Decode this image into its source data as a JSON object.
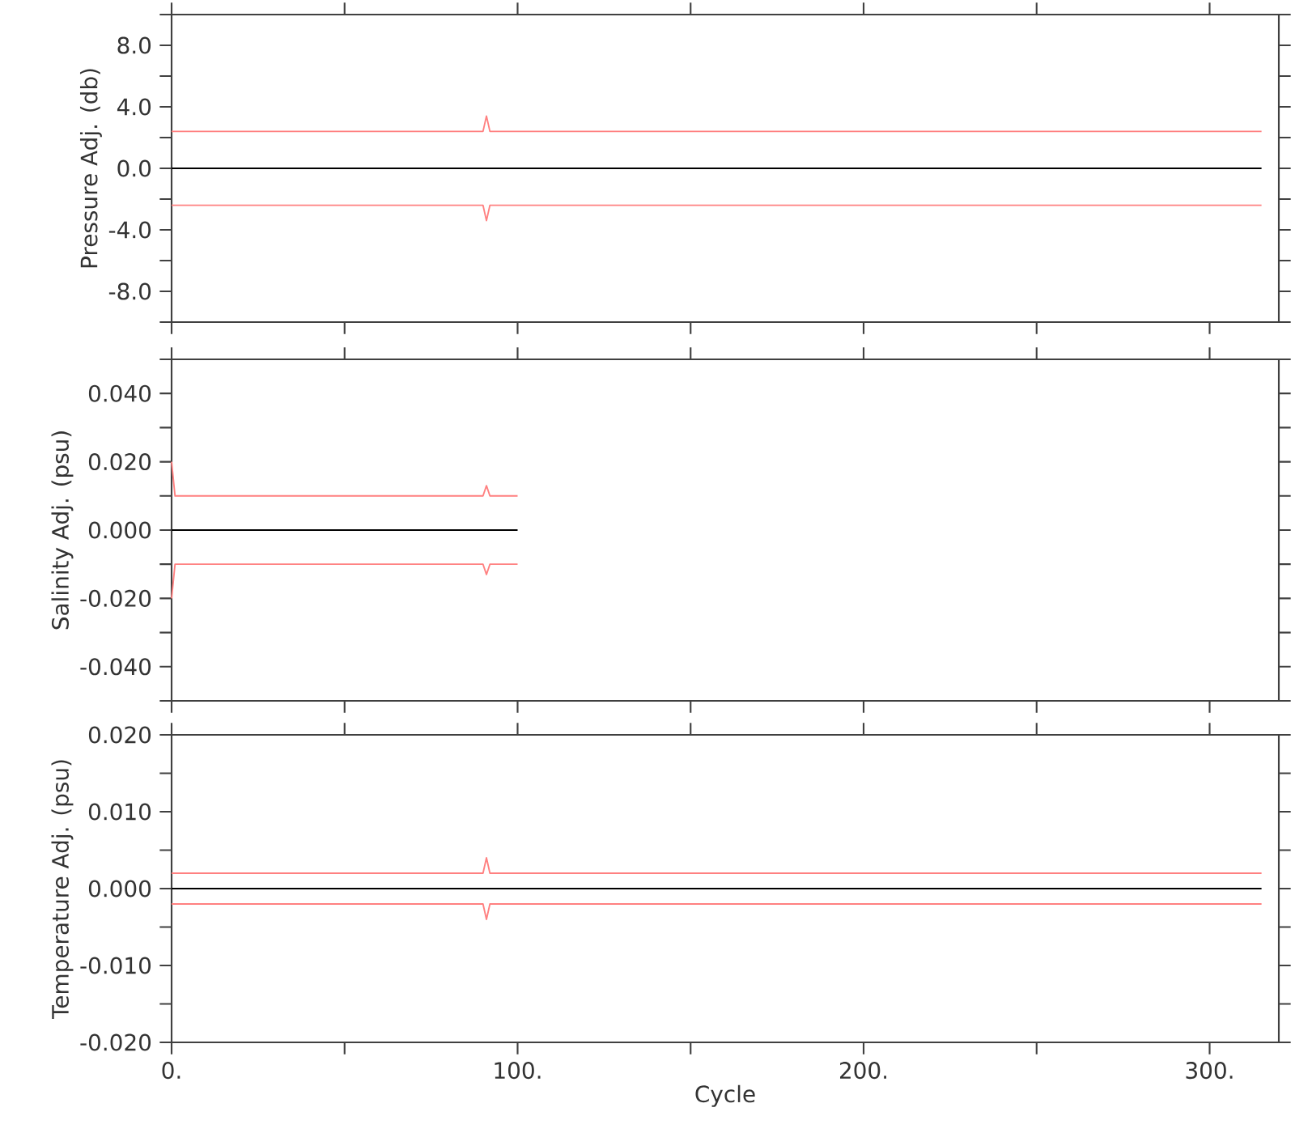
{
  "chart_data": [
    {
      "type": "line",
      "ylabel": "Pressure Adj. (db)",
      "xlim": [
        0,
        320
      ],
      "xticks": [
        {
          "value": 0,
          "label": null
        },
        {
          "value": 50,
          "label": null
        },
        {
          "value": 100,
          "label": null
        },
        {
          "value": 150,
          "label": null
        },
        {
          "value": 200,
          "label": null
        },
        {
          "value": 250,
          "label": null
        },
        {
          "value": 300,
          "label": null
        }
      ],
      "ylim": [
        -10,
        10
      ],
      "yticks": [
        {
          "value": -10,
          "label": null
        },
        {
          "value": -8,
          "label": "-8.0"
        },
        {
          "value": -6,
          "label": null
        },
        {
          "value": -4,
          "label": "-4.0"
        },
        {
          "value": -2,
          "label": null
        },
        {
          "value": 0,
          "label": "0.0"
        },
        {
          "value": 2,
          "label": null
        },
        {
          "value": 4,
          "label": "4.0"
        },
        {
          "value": 6,
          "label": null
        },
        {
          "value": 8,
          "label": "8.0"
        },
        {
          "value": 10,
          "label": null
        }
      ],
      "tick_labels": "y",
      "line_style": "solid",
      "marker": "none",
      "series": [
        {
          "color": "#ff8080",
          "x": [
            0,
            90,
            91,
            92,
            315
          ],
          "values": [
            2.4,
            2.4,
            3.4,
            2.4,
            2.4
          ]
        },
        {
          "color": "#ff8080",
          "x": [
            0,
            90,
            91,
            92,
            315
          ],
          "values": [
            -2.4,
            -2.4,
            -3.4,
            -2.4,
            -2.4
          ]
        },
        {
          "color": "#000000",
          "x": [
            0,
            315
          ],
          "values": [
            0,
            0
          ]
        }
      ]
    },
    {
      "type": "line",
      "ylabel": "Salinity Adj. (psu)",
      "xlim": [
        0,
        320
      ],
      "xticks": [
        {
          "value": 0,
          "label": null
        },
        {
          "value": 50,
          "label": null
        },
        {
          "value": 100,
          "label": null
        },
        {
          "value": 150,
          "label": null
        },
        {
          "value": 200,
          "label": null
        },
        {
          "value": 250,
          "label": null
        },
        {
          "value": 300,
          "label": null
        }
      ],
      "ylim": [
        -0.05,
        0.05
      ],
      "yticks": [
        {
          "value": -0.05,
          "label": null
        },
        {
          "value": -0.04,
          "label": "-0.040"
        },
        {
          "value": -0.03,
          "label": null
        },
        {
          "value": -0.02,
          "label": "-0.020"
        },
        {
          "value": -0.01,
          "label": null
        },
        {
          "value": 0,
          "label": "0.000"
        },
        {
          "value": 0.01,
          "label": null
        },
        {
          "value": 0.02,
          "label": "0.020"
        },
        {
          "value": 0.03,
          "label": null
        },
        {
          "value": 0.04,
          "label": "0.040"
        },
        {
          "value": 0.05,
          "label": null
        }
      ],
      "tick_labels": "y",
      "line_style": "solid",
      "marker": "none",
      "series": [
        {
          "color": "#ff8080",
          "x": [
            0,
            1,
            90,
            91,
            92,
            100
          ],
          "values": [
            0.02,
            0.01,
            0.01,
            0.013,
            0.01,
            0.01
          ]
        },
        {
          "color": "#ff8080",
          "x": [
            0,
            1,
            90,
            91,
            92,
            100
          ],
          "values": [
            -0.02,
            -0.01,
            -0.01,
            -0.013,
            -0.01,
            -0.01
          ]
        },
        {
          "color": "#000000",
          "x": [
            0,
            100
          ],
          "values": [
            0,
            0
          ]
        }
      ]
    },
    {
      "type": "line",
      "ylabel": "Temperature Adj. (psu)",
      "xlabel": "Cycle",
      "xlim": [
        0,
        320
      ],
      "xticks": [
        {
          "value": 0,
          "label": "0."
        },
        {
          "value": 50,
          "label": null
        },
        {
          "value": 100,
          "label": "100."
        },
        {
          "value": 150,
          "label": null
        },
        {
          "value": 200,
          "label": "200."
        },
        {
          "value": 250,
          "label": null
        },
        {
          "value": 300,
          "label": "300."
        }
      ],
      "ylim": [
        -0.02,
        0.02
      ],
      "yticks": [
        {
          "value": -0.02,
          "label": "-0.020"
        },
        {
          "value": -0.015,
          "label": null
        },
        {
          "value": -0.01,
          "label": "-0.010"
        },
        {
          "value": -0.005,
          "label": null
        },
        {
          "value": 0,
          "label": "0.000"
        },
        {
          "value": 0.005,
          "label": null
        },
        {
          "value": 0.01,
          "label": "0.010"
        },
        {
          "value": 0.015,
          "label": null
        },
        {
          "value": 0.02,
          "label": "0.020"
        }
      ],
      "line_style": "solid",
      "marker": "none",
      "series": [
        {
          "color": "#ff8080",
          "x": [
            0,
            90,
            91,
            92,
            315
          ],
          "values": [
            0.002,
            0.002,
            0.004,
            0.002,
            0.002
          ]
        },
        {
          "color": "#ff8080",
          "x": [
            0,
            90,
            91,
            92,
            315
          ],
          "values": [
            -0.002,
            -0.002,
            -0.004,
            -0.002,
            -0.002
          ]
        },
        {
          "color": "#000000",
          "x": [
            0,
            315
          ],
          "values": [
            0,
            0
          ]
        }
      ]
    }
  ]
}
